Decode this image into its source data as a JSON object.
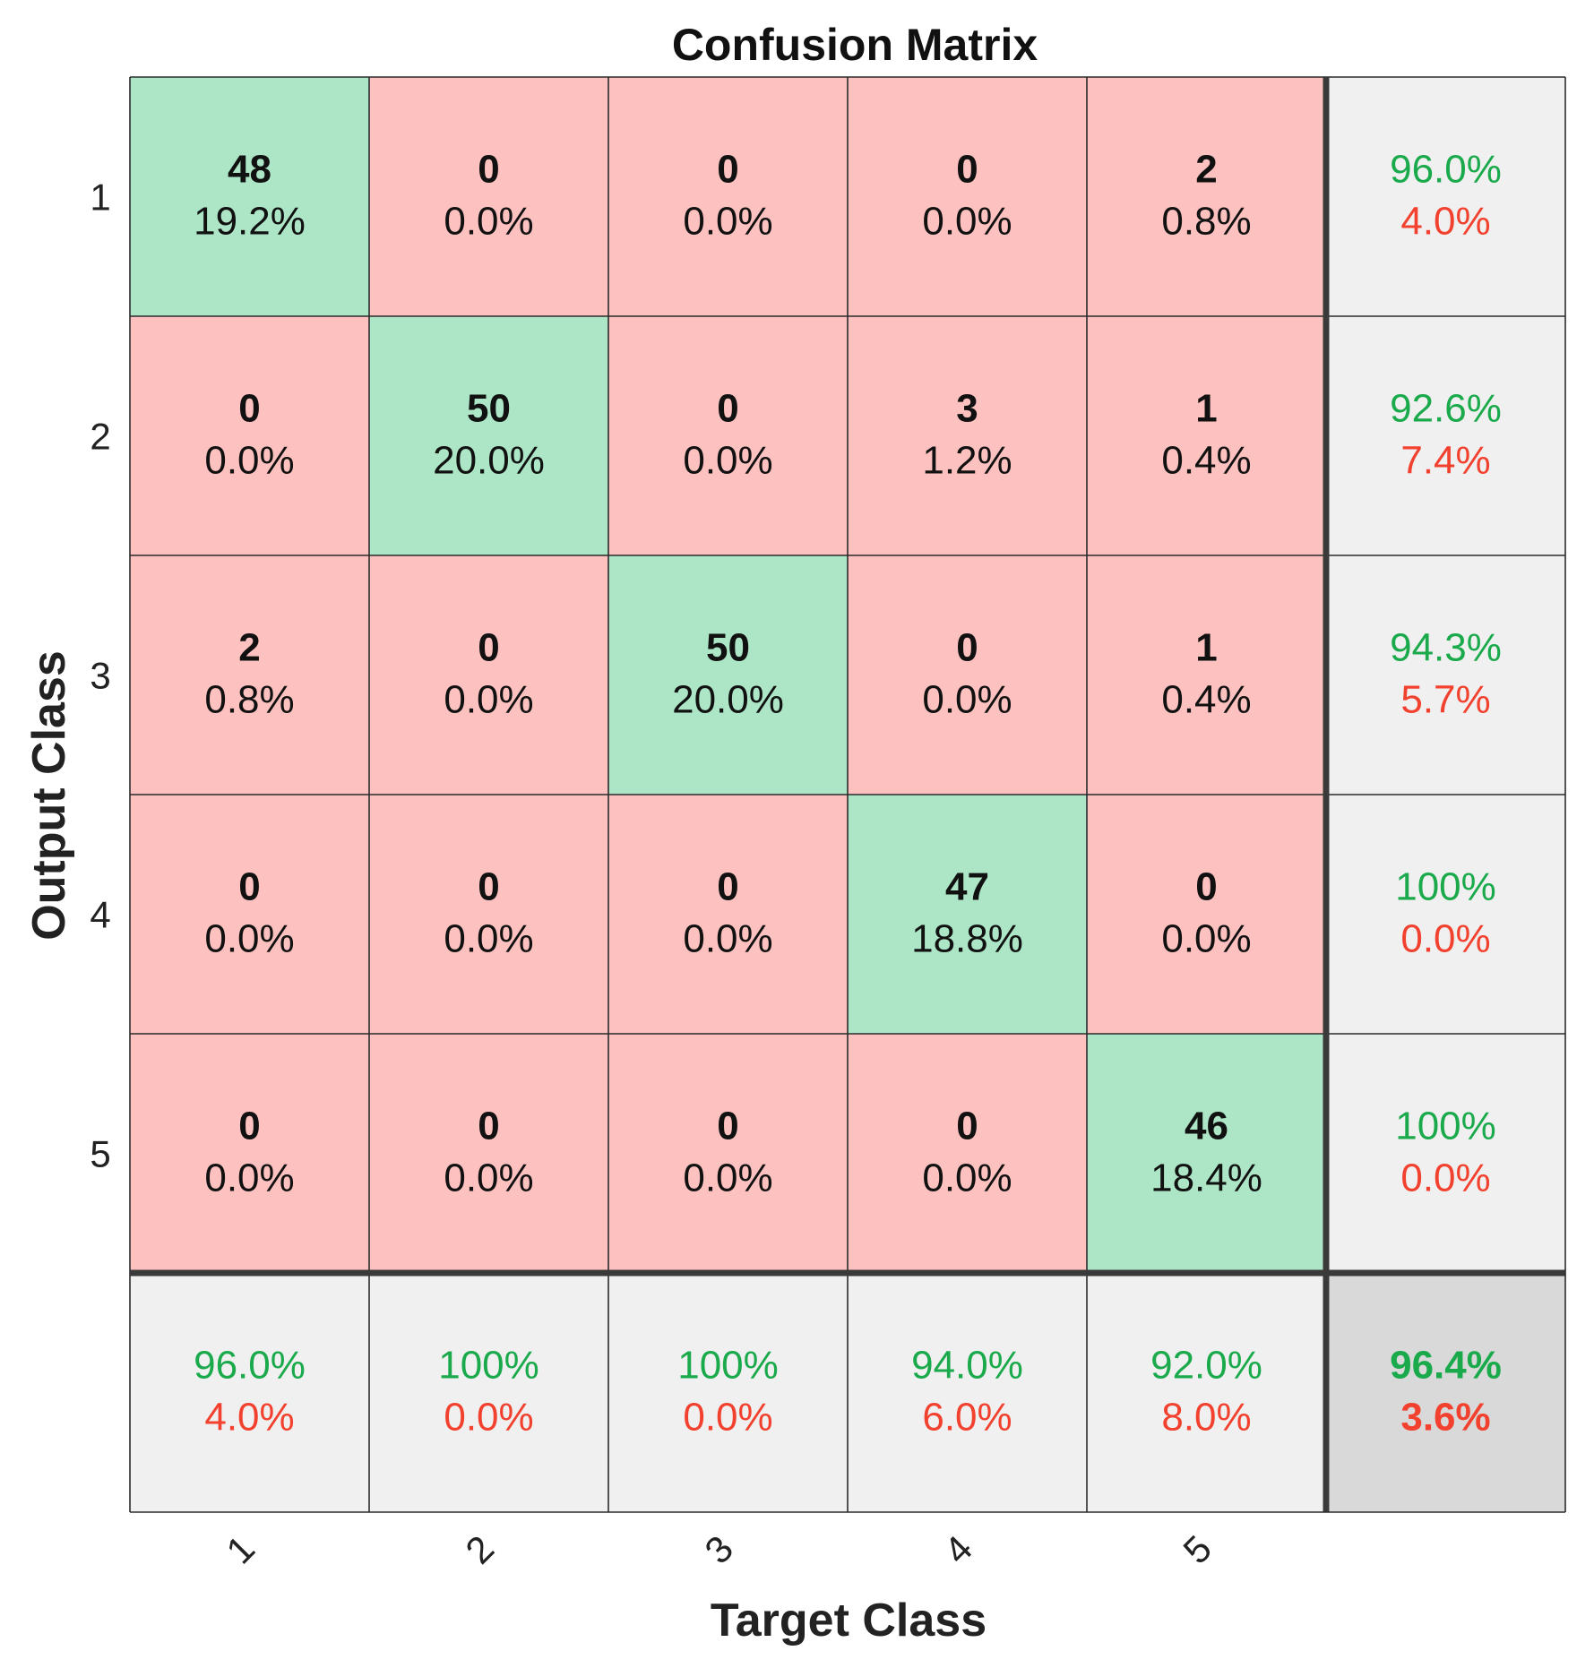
{
  "chart_data": {
    "type": "heatmap",
    "title": "Confusion Matrix",
    "xlabel": "Target Class",
    "ylabel": "Output Class",
    "x_tick_labels": [
      "1",
      "2",
      "3",
      "4",
      "5"
    ],
    "y_tick_labels": [
      "1",
      "2",
      "3",
      "4",
      "5"
    ],
    "matrix": {
      "counts": [
        [
          48,
          0,
          0,
          0,
          2
        ],
        [
          0,
          50,
          0,
          3,
          1
        ],
        [
          2,
          0,
          50,
          0,
          1
        ],
        [
          0,
          0,
          0,
          47,
          0
        ],
        [
          0,
          0,
          0,
          0,
          46
        ]
      ],
      "percents": [
        [
          "19.2%",
          "0.0%",
          "0.0%",
          "0.0%",
          "0.8%"
        ],
        [
          "0.0%",
          "20.0%",
          "0.0%",
          "1.2%",
          "0.4%"
        ],
        [
          "0.8%",
          "0.0%",
          "20.0%",
          "0.0%",
          "0.4%"
        ],
        [
          "0.0%",
          "0.0%",
          "0.0%",
          "18.8%",
          "0.0%"
        ],
        [
          "0.0%",
          "0.0%",
          "0.0%",
          "0.0%",
          "18.4%"
        ]
      ]
    },
    "row_summary": [
      {
        "correct": "96.0%",
        "error": "4.0%"
      },
      {
        "correct": "92.6%",
        "error": "7.4%"
      },
      {
        "correct": "94.3%",
        "error": "5.7%"
      },
      {
        "correct": "100%",
        "error": "0.0%"
      },
      {
        "correct": "100%",
        "error": "0.0%"
      }
    ],
    "column_summary": [
      {
        "correct": "96.0%",
        "error": "4.0%"
      },
      {
        "correct": "100%",
        "error": "0.0%"
      },
      {
        "correct": "100%",
        "error": "0.0%"
      },
      {
        "correct": "94.0%",
        "error": "6.0%"
      },
      {
        "correct": "92.0%",
        "error": "8.0%"
      }
    ],
    "overall": {
      "correct": "96.4%",
      "error": "3.6%"
    }
  },
  "colors": {
    "diagonal": "#ACE6C6",
    "off_diagonal": "#FDC2C0",
    "summary": "#F0F0F0",
    "overall": "#D9D9D9",
    "good_text": "#1AAA4B",
    "bad_text": "#F2412E"
  }
}
